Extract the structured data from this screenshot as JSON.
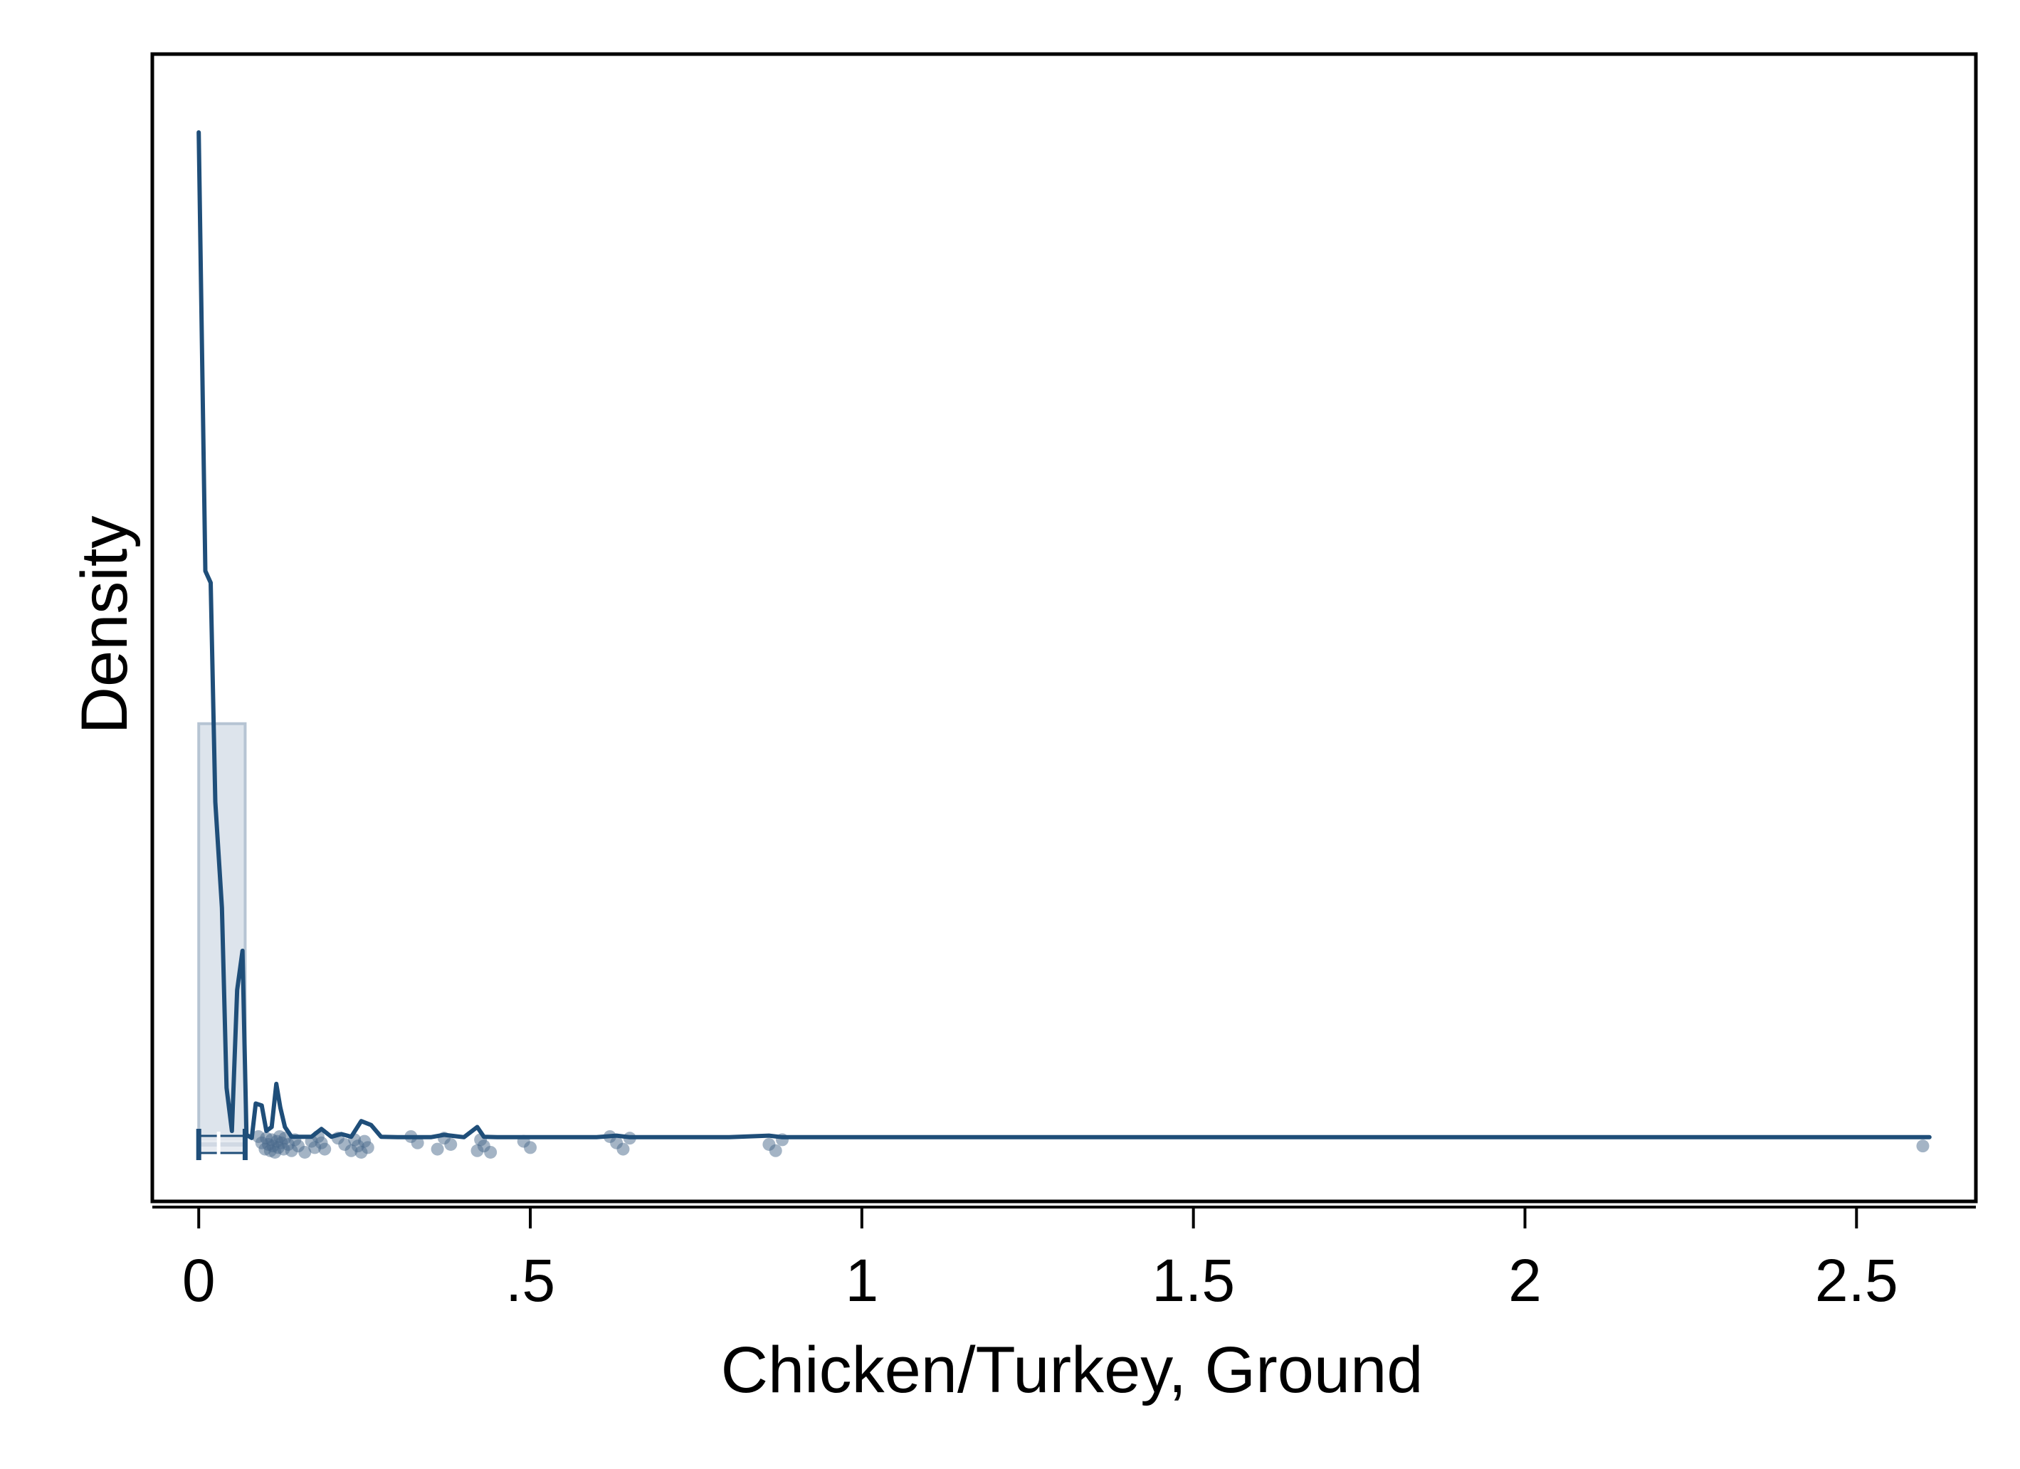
{
  "chart_data": {
    "type": "histogram-density",
    "xlabel": "Chicken/Turkey, Ground",
    "ylabel": "Density",
    "xlim": [
      -0.07,
      2.68
    ],
    "ylim": [
      -1.6,
      27.7
    ],
    "x_ticks": [
      {
        "value": 0,
        "label": "0"
      },
      {
        "value": 0.5,
        "label": ".5"
      },
      {
        "value": 1,
        "label": "1"
      },
      {
        "value": 1.5,
        "label": "1.5"
      },
      {
        "value": 2,
        "label": "2"
      },
      {
        "value": 2.5,
        "label": "2.5"
      }
    ],
    "grid": false,
    "legend": "none",
    "histogram": {
      "bins": [
        {
          "x0": 0,
          "x1": 0.07,
          "density": 10.6
        }
      ]
    },
    "density_curve": {
      "x": [
        0,
        0.01,
        0.018,
        0.025,
        0.035,
        0.042,
        0.05,
        0.058,
        0.066,
        0.072,
        0.08,
        0.086,
        0.095,
        0.102,
        0.11,
        0.117,
        0.123,
        0.13,
        0.14,
        0.155,
        0.17,
        0.185,
        0.2,
        0.215,
        0.23,
        0.245,
        0.26,
        0.275,
        0.3,
        0.35,
        0.37,
        0.4,
        0.42,
        0.43,
        0.45,
        0.6,
        0.63,
        0.65,
        0.8,
        0.86,
        0.88,
        1.0,
        2.0,
        2.61
      ],
      "y": [
        25.7,
        14.5,
        14.2,
        8.6,
        5.9,
        1.3,
        0.2,
        3.8,
        4.8,
        0.1,
        0.02,
        0.9,
        0.85,
        0.2,
        0.3,
        1.4,
        0.8,
        0.3,
        0.05,
        0.05,
        0.05,
        0.25,
        0.05,
        0.12,
        0.05,
        0.45,
        0.35,
        0.05,
        0.04,
        0.04,
        0.1,
        0.04,
        0.3,
        0.05,
        0.04,
        0.04,
        0.08,
        0.04,
        0.04,
        0.08,
        0.04,
        0.04,
        0.04,
        0.04
      ]
    },
    "box": {
      "q1": 0,
      "median": 0.03,
      "q3": 0.07,
      "whisker_low": 0,
      "whisker_high": 0.07
    },
    "jitter_points": [
      0.09,
      0.095,
      0.1,
      0.102,
      0.105,
      0.108,
      0.11,
      0.112,
      0.115,
      0.118,
      0.12,
      0.122,
      0.125,
      0.128,
      0.13,
      0.135,
      0.14,
      0.145,
      0.15,
      0.16,
      0.17,
      0.175,
      0.18,
      0.185,
      0.19,
      0.21,
      0.22,
      0.23,
      0.235,
      0.24,
      0.245,
      0.25,
      0.255,
      0.32,
      0.33,
      0.36,
      0.37,
      0.38,
      0.42,
      0.425,
      0.43,
      0.44,
      0.49,
      0.5,
      0.62,
      0.63,
      0.64,
      0.65,
      0.86,
      0.87,
      0.88,
      2.6
    ]
  },
  "colors": {
    "primary": "#1f4e79",
    "hist_fill": "#dde4ec",
    "hist_stroke": "#b6c4d3",
    "point_fill": "#4a6a8c",
    "axis": "#000000"
  }
}
